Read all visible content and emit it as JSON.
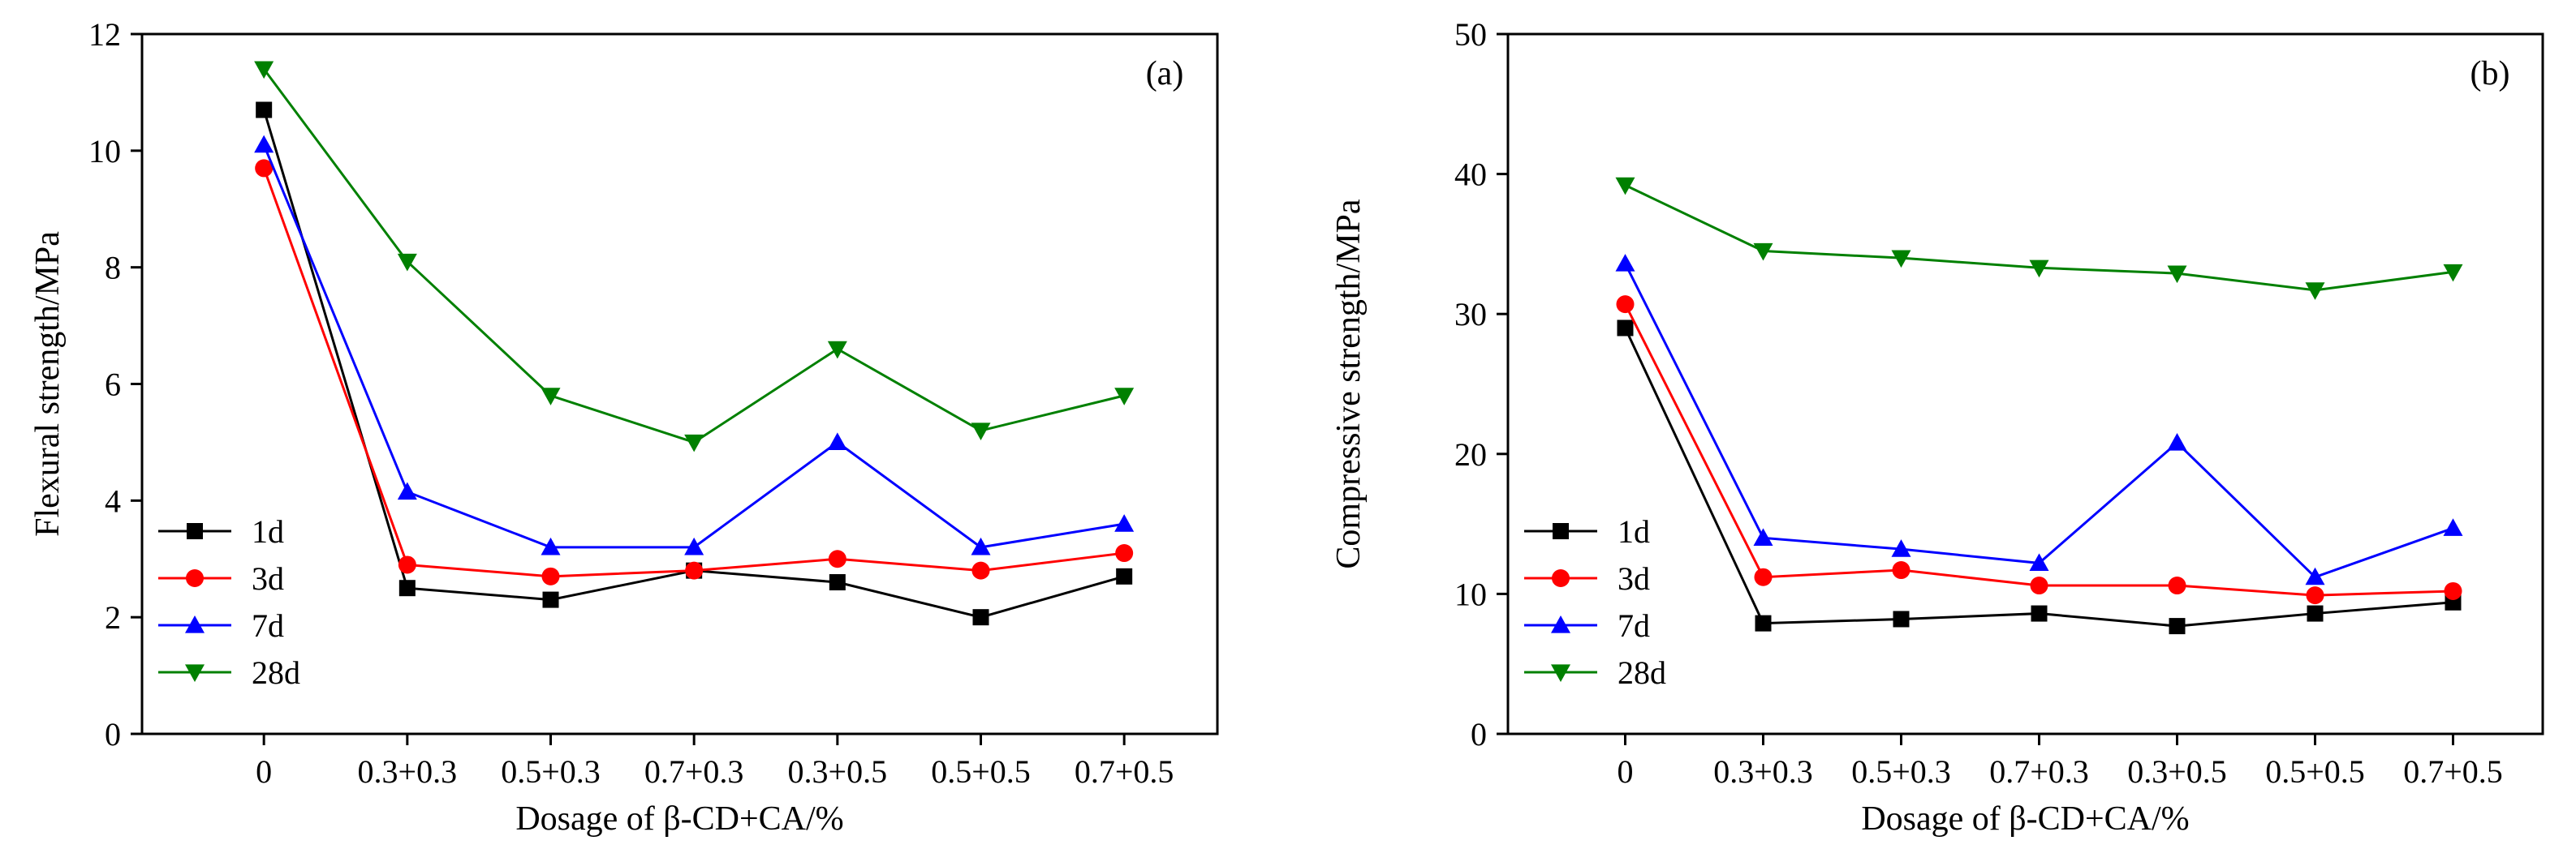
{
  "chart_data": [
    {
      "type": "line",
      "panel_label": "(a)",
      "xlabel": "Dosage of β-CD+CA/%",
      "ylabel": "Flexural strength/MPa",
      "categories": [
        "0",
        "0.3+0.3",
        "0.5+0.3",
        "0.7+0.3",
        "0.3+0.5",
        "0.5+0.5",
        "0.7+0.5"
      ],
      "ylim": [
        0,
        12
      ],
      "yticks": [
        0,
        2,
        4,
        6,
        8,
        10,
        12
      ],
      "grid": false,
      "legend_position": "bottom-left",
      "series": [
        {
          "name": "1d",
          "color": "#000000",
          "marker": "square",
          "values": [
            10.7,
            2.5,
            2.3,
            2.8,
            2.6,
            2.0,
            2.7
          ]
        },
        {
          "name": "3d",
          "color": "#ff0000",
          "marker": "circle",
          "values": [
            9.7,
            2.9,
            2.7,
            2.8,
            3.0,
            2.8,
            3.1
          ]
        },
        {
          "name": "7d",
          "color": "#0000ff",
          "marker": "triangle-up",
          "values": [
            10.1,
            4.15,
            3.2,
            3.2,
            5.0,
            3.2,
            3.6
          ]
        },
        {
          "name": "28d",
          "color": "#008000",
          "marker": "triangle-down",
          "values": [
            11.4,
            8.1,
            5.8,
            5.0,
            6.6,
            5.2,
            5.8
          ]
        }
      ]
    },
    {
      "type": "line",
      "panel_label": "(b)",
      "xlabel": "Dosage of β-CD+CA/%",
      "ylabel": "Compressive strength/MPa",
      "categories": [
        "0",
        "0.3+0.3",
        "0.5+0.3",
        "0.7+0.3",
        "0.3+0.5",
        "0.5+0.5",
        "0.7+0.5"
      ],
      "ylim": [
        0,
        50
      ],
      "yticks": [
        0,
        10,
        20,
        30,
        40,
        50
      ],
      "grid": false,
      "legend_position": "bottom-left",
      "series": [
        {
          "name": "1d",
          "color": "#000000",
          "marker": "square",
          "values": [
            29.0,
            7.9,
            8.2,
            8.6,
            7.7,
            8.6,
            9.4
          ]
        },
        {
          "name": "3d",
          "color": "#ff0000",
          "marker": "circle",
          "values": [
            30.7,
            11.2,
            11.7,
            10.6,
            10.6,
            9.9,
            10.2
          ]
        },
        {
          "name": "7d",
          "color": "#0000ff",
          "marker": "triangle-up",
          "values": [
            33.6,
            14.0,
            13.2,
            12.2,
            20.8,
            11.2,
            14.7
          ]
        },
        {
          "name": "28d",
          "color": "#008000",
          "marker": "triangle-down",
          "values": [
            39.2,
            34.5,
            34.0,
            33.3,
            32.9,
            31.7,
            33.0
          ]
        }
      ]
    }
  ]
}
